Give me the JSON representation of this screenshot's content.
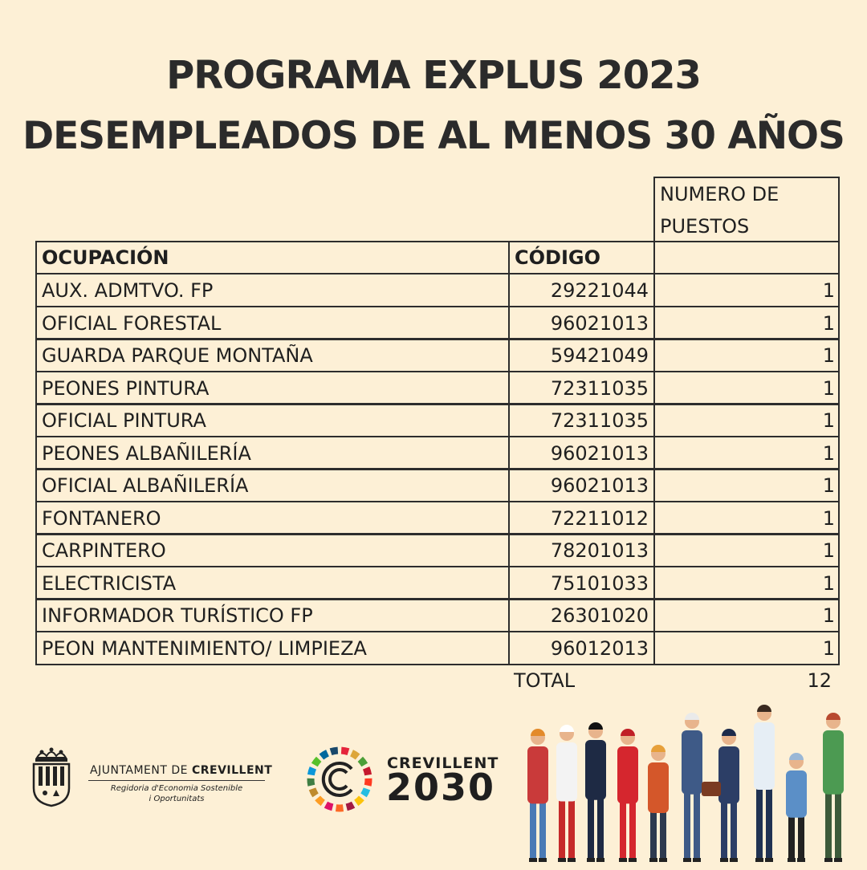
{
  "title_line1": "PROGRAMA EXPLUS 2023",
  "title_line2": "DESEMPLEADOS DE AL MENOS 30 AÑOS",
  "table": {
    "header_puestos": [
      "NUMERO DE",
      "PUESTOS"
    ],
    "header_ocupacion": "OCUPACIÓN",
    "header_codigo": "CÓDIGO",
    "rows": [
      {
        "ocupacion": "AUX. ADMTVO. FP",
        "codigo": "29221044",
        "puestos": "1"
      },
      {
        "ocupacion": "OFICIAL FORESTAL",
        "codigo": "96021013",
        "puestos": "1"
      },
      {
        "ocupacion": "GUARDA PARQUE MONTAÑA",
        "codigo": "59421049",
        "puestos": "1"
      },
      {
        "ocupacion": "PEONES PINTURA",
        "codigo": "72311035",
        "puestos": "1"
      },
      {
        "ocupacion": "OFICIAL PINTURA",
        "codigo": "72311035",
        "puestos": "1"
      },
      {
        "ocupacion": "PEONES ALBAÑILERÍA",
        "codigo": "96021013",
        "puestos": "1"
      },
      {
        "ocupacion": "OFICIAL ALBAÑILERÍA",
        "codigo": "96021013",
        "puestos": "1"
      },
      {
        "ocupacion": "FONTANERO",
        "codigo": "72211012",
        "puestos": "1"
      },
      {
        "ocupacion": "CARPINTERO",
        "codigo": "78201013",
        "puestos": "1"
      },
      {
        "ocupacion": "ELECTRICISTA",
        "codigo": "75101033",
        "puestos": "1"
      },
      {
        "ocupacion": "INFORMADOR TURÍSTICO FP",
        "codigo": "26301020",
        "puestos": "1"
      },
      {
        "ocupacion": "PEON MANTENIMIENTO/ LIMPIEZA",
        "codigo": "96012013",
        "puestos": "1"
      }
    ],
    "total_label": "TOTAL",
    "total_value": "12"
  },
  "footer": {
    "ajuntament_prefix": "AJUNTAMENT DE ",
    "ajuntament_name": "CREVILLENT",
    "regidoria_line1": "Regidoria d'Economia Sostenible",
    "regidoria_line2": "i Oportunitats",
    "c2030_top": "CREVILLENT",
    "c2030_year": "2030"
  },
  "colors": {
    "background": "#fdf0d6",
    "text": "#1f1f1f",
    "grid": "#2d2d2d"
  }
}
